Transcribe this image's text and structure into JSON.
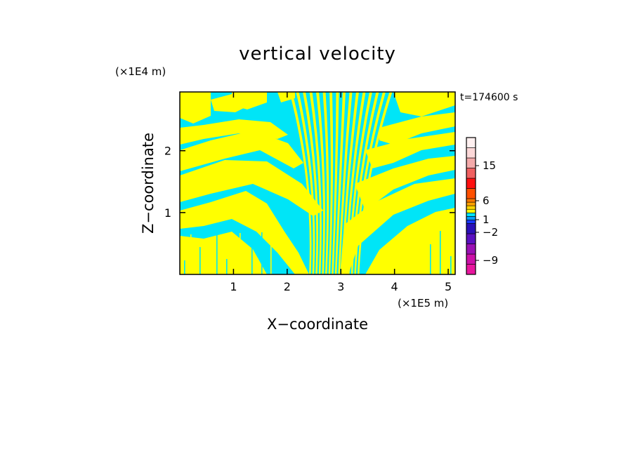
{
  "chart_data": {
    "type": "heatmap",
    "title": "vertical velocity",
    "xlabel": "X−coordinate",
    "ylabel": "Z−coordinate",
    "x_unit": "(×1E5 m)",
    "y_unit": "(×1E4 m)",
    "time_label": "t=174600 s",
    "xlim": [
      0,
      5.13
    ],
    "ylim": [
      0,
      2.95
    ],
    "x_ticks": [
      {
        "value": 1,
        "label": "1"
      },
      {
        "value": 2,
        "label": "2"
      },
      {
        "value": 3,
        "label": "3"
      },
      {
        "value": 4,
        "label": "4"
      },
      {
        "value": 5,
        "label": "5"
      }
    ],
    "y_ticks": [
      {
        "value": 1,
        "label": "1"
      },
      {
        "value": 2,
        "label": "2"
      }
    ],
    "field_colors": {
      "positive": "#ffff00",
      "negative": "#00e5f7"
    },
    "colorbar": {
      "levels": [
        {
          "color": "#e8169e"
        },
        {
          "color": "#cc10a8"
        },
        {
          "color": "#9a10b4"
        },
        {
          "color": "#5a10c0"
        },
        {
          "color": "#2a10b8"
        },
        {
          "color": "#1838ff"
        },
        {
          "color": "#00a0ff"
        },
        {
          "color": "#00e5f7"
        },
        {
          "color": "#ffff00"
        },
        {
          "color": "#ffd400"
        },
        {
          "color": "#ffa000"
        },
        {
          "color": "#ff7800"
        },
        {
          "color": "#ff5000"
        },
        {
          "color": "#ff1010"
        },
        {
          "color": "#f06060"
        },
        {
          "color": "#f4aaaa"
        },
        {
          "color": "#fcd8d8"
        },
        {
          "color": "#fff0f0"
        }
      ],
      "tick_labels": [
        "15",
        "6",
        "1",
        "−2",
        "−9"
      ]
    }
  }
}
